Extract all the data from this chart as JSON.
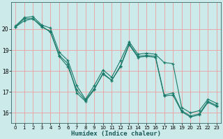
{
  "xlabel": "Humidex (Indice chaleur)",
  "bg_color": "#cceaea",
  "grid_color": "#e8a8a8",
  "line_color": "#1a7a6a",
  "xlim": [
    -0.5,
    23.5
  ],
  "ylim": [
    15.5,
    21.3
  ],
  "xticks": [
    0,
    1,
    2,
    3,
    4,
    5,
    6,
    7,
    8,
    9,
    10,
    11,
    12,
    13,
    14,
    15,
    16,
    17,
    18,
    19,
    20,
    21,
    22,
    23
  ],
  "yticks": [
    16,
    17,
    18,
    19,
    20
  ],
  "line1_x": [
    0,
    1,
    2,
    3,
    4,
    5,
    6,
    7,
    8,
    9,
    10,
    11,
    12,
    13,
    14,
    15,
    16,
    17,
    18,
    19,
    20,
    21,
    22,
    23
  ],
  "line1_y": [
    20.15,
    20.55,
    20.6,
    20.2,
    20.05,
    18.9,
    18.5,
    17.3,
    16.65,
    17.3,
    18.05,
    17.7,
    18.5,
    19.4,
    18.8,
    18.85,
    18.8,
    18.4,
    18.35,
    16.25,
    16.0,
    16.1,
    16.65,
    16.45
  ],
  "line2_x": [
    0,
    1,
    2,
    3,
    4,
    5,
    6,
    7,
    8,
    9,
    10,
    11,
    12,
    13,
    14,
    15,
    16,
    17,
    18,
    19,
    20,
    21,
    22,
    23
  ],
  "line2_y": [
    20.1,
    20.5,
    20.5,
    20.15,
    19.85,
    18.75,
    18.35,
    16.95,
    16.55,
    17.1,
    17.9,
    17.55,
    18.25,
    19.3,
    18.7,
    18.75,
    18.7,
    16.85,
    16.95,
    16.1,
    15.85,
    15.95,
    16.55,
    16.35
  ],
  "line3_x": [
    0,
    1,
    2,
    3,
    4,
    5,
    6,
    7,
    8,
    9,
    10,
    11,
    12,
    13,
    14,
    15,
    16,
    17,
    18,
    19,
    20,
    21,
    22,
    23
  ],
  "line3_y": [
    20.1,
    20.4,
    20.5,
    20.1,
    19.9,
    18.7,
    18.2,
    17.1,
    16.6,
    17.15,
    17.85,
    17.55,
    18.2,
    19.25,
    18.65,
    18.7,
    18.65,
    16.8,
    16.85,
    16.05,
    15.8,
    15.9,
    16.5,
    16.3
  ]
}
